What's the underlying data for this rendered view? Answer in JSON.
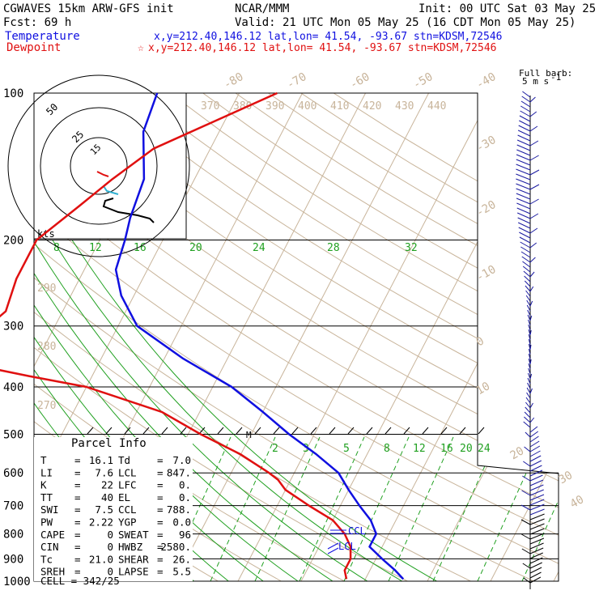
{
  "header": {
    "model": "CGWAVES 15km ARW-GFS init",
    "org": "NCAR/MMM",
    "init": "Init: 00 UTC Sat 03 May 25",
    "fcst": "Fcst:   69 h",
    "valid": "Valid: 21 UTC Mon 05 May 25 (16 CDT Mon 05 May 25)",
    "temp_label": "Temperature",
    "dew_label": "Dewpoint",
    "temp_info": "x,y=212.40,146.12   lat,lon= 41.54, -93.67   stn=KDSM,72546",
    "dew_info": "x,y=212.40,146.12   lat,lon= 41.54, -93.67   stn=KDSM,72546",
    "dew_marker": "☆",
    "barb_title1": "Full barb:",
    "barb_title2": "5 m s",
    "barb_exp": "-1"
  },
  "colors": {
    "temperature": "#1010e0",
    "dewpoint": "#e01010",
    "isotherm": "#c8b49a",
    "mixing_ratio": "#20a020",
    "isobar": "#000000"
  },
  "hodograph": {
    "labels": [
      "50",
      "25",
      "15"
    ],
    "unit": "kts"
  },
  "parcel": {
    "title": "Parcel Info",
    "rows": [
      {
        "k1": "T",
        "v1": "16.1",
        "k2": "Td",
        "v2": "7.0"
      },
      {
        "k1": "LI",
        "v1": "7.6",
        "k2": "LCL",
        "v2": "847."
      },
      {
        "k1": "K",
        "v1": "22",
        "k2": "LFC",
        "v2": "0."
      },
      {
        "k1": "TT",
        "v1": "40",
        "k2": "EL",
        "v2": "0."
      },
      {
        "k1": "SWI",
        "v1": "7.5",
        "k2": "CCL",
        "v2": "788."
      },
      {
        "k1": "PW",
        "v1": "2.22",
        "k2": "YGP",
        "v2": "0.0"
      },
      {
        "k1": "CAPE",
        "v1": "0",
        "k2": "SWEAT",
        "v2": "96"
      },
      {
        "k1": "CIN",
        "v1": "0",
        "k2": "HWBZ",
        "v2": "2580."
      },
      {
        "k1": "Tc",
        "v1": "21.0",
        "k2": "SHEAR",
        "v2": "26."
      },
      {
        "k1": "SREH",
        "v1": "0",
        "k2": "LAPSE",
        "v2": "5.5"
      }
    ],
    "cell_label": "CELL = 342/25"
  },
  "annotations": {
    "ccl": "CCL",
    "lcl": "LCL",
    "melt": "M"
  },
  "chart_data": {
    "type": "line",
    "title": "Skew-T log-P sounding",
    "pressure_levels": [
      100,
      200,
      300,
      400,
      500,
      600,
      700,
      800,
      900,
      1000
    ],
    "pressure_labels": [
      "100",
      "200",
      "300",
      "400",
      "500",
      "600",
      "700",
      "800",
      "900",
      "1000"
    ],
    "isotherm_labels": [
      "-80",
      "-70",
      "-60",
      "-50",
      "-40",
      "-30",
      "-20",
      "-10",
      "0",
      "10",
      "20",
      "30",
      "40"
    ],
    "theta_labels": [
      "370",
      "380",
      "390",
      "400",
      "410",
      "420",
      "430",
      "440"
    ],
    "theta_left_labels": [
      "290",
      "280",
      "270"
    ],
    "mixing_upper_labels": [
      "8",
      "12",
      "16",
      "20",
      "24",
      "28",
      "32"
    ],
    "mixing_lower_labels": [
      "2",
      "3",
      "5",
      "8",
      "12",
      "16",
      "20",
      "24"
    ],
    "series": [
      {
        "name": "Temperature",
        "points": [
          [
            100,
            -63
          ],
          [
            120,
            -62
          ],
          [
            150,
            -58
          ],
          [
            180,
            -57
          ],
          [
            200,
            -56
          ],
          [
            230,
            -55
          ],
          [
            260,
            -52
          ],
          [
            300,
            -47
          ],
          [
            350,
            -37
          ],
          [
            400,
            -27
          ],
          [
            450,
            -20
          ],
          [
            500,
            -14
          ],
          [
            550,
            -8
          ],
          [
            600,
            -3
          ],
          [
            650,
            0
          ],
          [
            700,
            3
          ],
          [
            750,
            6
          ],
          [
            800,
            8
          ],
          [
            820,
            8
          ],
          [
            850,
            8
          ],
          [
            900,
            11
          ],
          [
            950,
            14
          ],
          [
            990,
            16
          ]
        ]
      },
      {
        "name": "Dewpoint",
        "points": [
          [
            100,
            -44
          ],
          [
            115,
            -52
          ],
          [
            130,
            -59
          ],
          [
            150,
            -63
          ],
          [
            170,
            -66
          ],
          [
            200,
            -70
          ],
          [
            240,
            -70
          ],
          [
            280,
            -69
          ],
          [
            320,
            -72
          ],
          [
            350,
            -75
          ],
          [
            380,
            -60
          ],
          [
            400,
            -50
          ],
          [
            450,
            -36
          ],
          [
            500,
            -28
          ],
          [
            550,
            -20
          ],
          [
            600,
            -14
          ],
          [
            620,
            -12
          ],
          [
            650,
            -10
          ],
          [
            700,
            -5
          ],
          [
            750,
            0
          ],
          [
            800,
            3
          ],
          [
            850,
            5
          ],
          [
            900,
            6
          ],
          [
            950,
            6
          ],
          [
            990,
            7
          ]
        ]
      }
    ],
    "wind_barbs_note": "Profile along right edge"
  }
}
